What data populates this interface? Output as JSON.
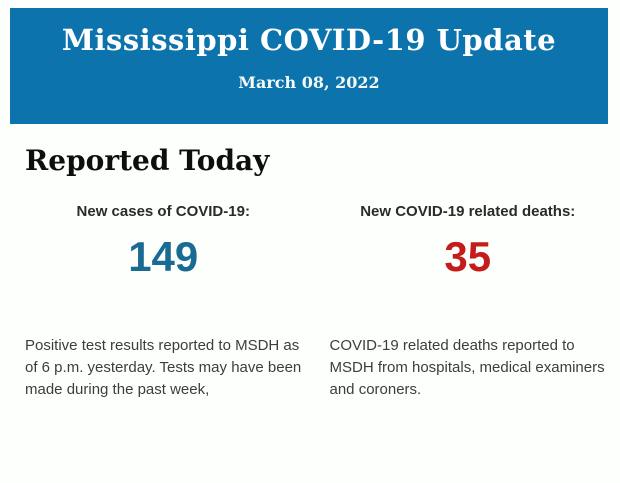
{
  "banner": {
    "title": "Mississippi COVID-19 Update",
    "date": "March 08, 2022",
    "bg_color": "#0c73ac"
  },
  "section": {
    "heading": "Reported Today"
  },
  "stats": [
    {
      "label": "New cases of COVID-19:",
      "value": "149",
      "value_color": "#1a6b94",
      "description": "Positive test results reported to MSDH as of 6 p.m. yesterday. Tests may have been made during the past week,"
    },
    {
      "label": "New COVID-19 related deaths:",
      "value": "35",
      "value_color": "#c41b1b",
      "description": "COVID-19 related deaths reported to MSDH from hospitals, medical examiners and coroners."
    }
  ]
}
